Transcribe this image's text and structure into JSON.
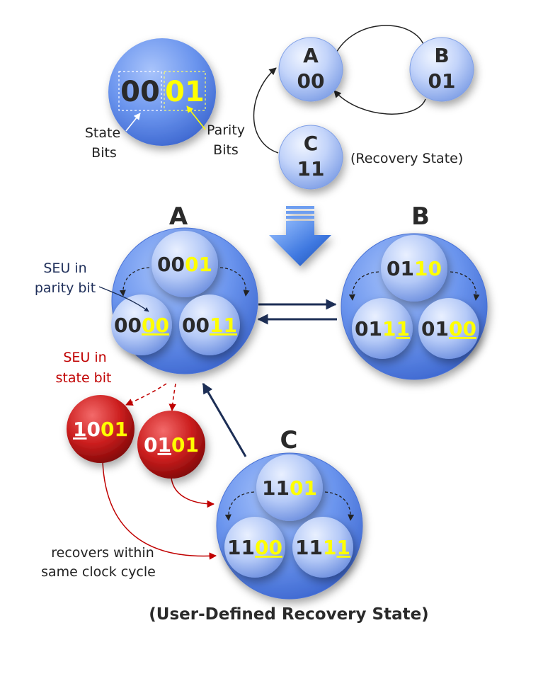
{
  "legend": {
    "state_bits_text": "00",
    "parity_bits_text": "01",
    "state_label_1": "State",
    "state_label_2": "Bits",
    "parity_label_1": "Parity",
    "parity_label_2": "Bits"
  },
  "small_fsm": {
    "a_name": "A",
    "a_code": "00",
    "b_name": "B",
    "b_code": "01",
    "c_name": "C",
    "c_code": "11",
    "c_note": "(Recovery State)"
  },
  "main": {
    "a_label": "A",
    "b_label": "B",
    "c_label": "C",
    "a_top": {
      "state": "00",
      "parity_plain": "",
      "parity_flip": "",
      "parity_rest": "01"
    },
    "a_left": {
      "state": "00",
      "parity_plain": "",
      "parity_flip": "00",
      "parity_rest": ""
    },
    "a_right": {
      "state": "00",
      "parity_plain": "",
      "parity_flip": "11",
      "parity_rest": ""
    },
    "b_top": {
      "state": "01",
      "parity_plain": "",
      "parity_flip": "",
      "parity_rest": "10"
    },
    "b_left": {
      "state": "01",
      "parity_plain": "1",
      "parity_flip": "1",
      "parity_rest": ""
    },
    "b_right": {
      "state": "01",
      "parity_plain": "",
      "parity_flip": "00",
      "parity_rest": ""
    },
    "c_top": {
      "state": "11",
      "parity_plain": "",
      "parity_flip": "",
      "parity_rest": "01"
    },
    "c_left": {
      "state": "11",
      "parity_plain": "",
      "parity_flip": "00",
      "parity_rest": ""
    },
    "c_right": {
      "state": "11",
      "parity_plain": "1",
      "parity_flip": "1",
      "parity_rest": ""
    },
    "err1": {
      "flip": "1",
      "state_rest": "0",
      "parity": "01"
    },
    "err2": {
      "state_pre": "0",
      "flip": "1",
      "parity": "01"
    },
    "seu_parity_1": "SEU in",
    "seu_parity_2": "parity bit",
    "seu_state_1": "SEU in",
    "seu_state_2": "state bit",
    "recover_1": "recovers within",
    "recover_2": "same clock cycle",
    "caption": "(User-Defined Recovery State)"
  },
  "colors": {
    "blue_state": "#6f9af0",
    "red_error": "#c51616",
    "parity_yellow": "#ffff00",
    "seu_label_red": "#c00000",
    "seu_label_navy": "#1f2f5a",
    "arrow_navy": "#1c2e55"
  }
}
